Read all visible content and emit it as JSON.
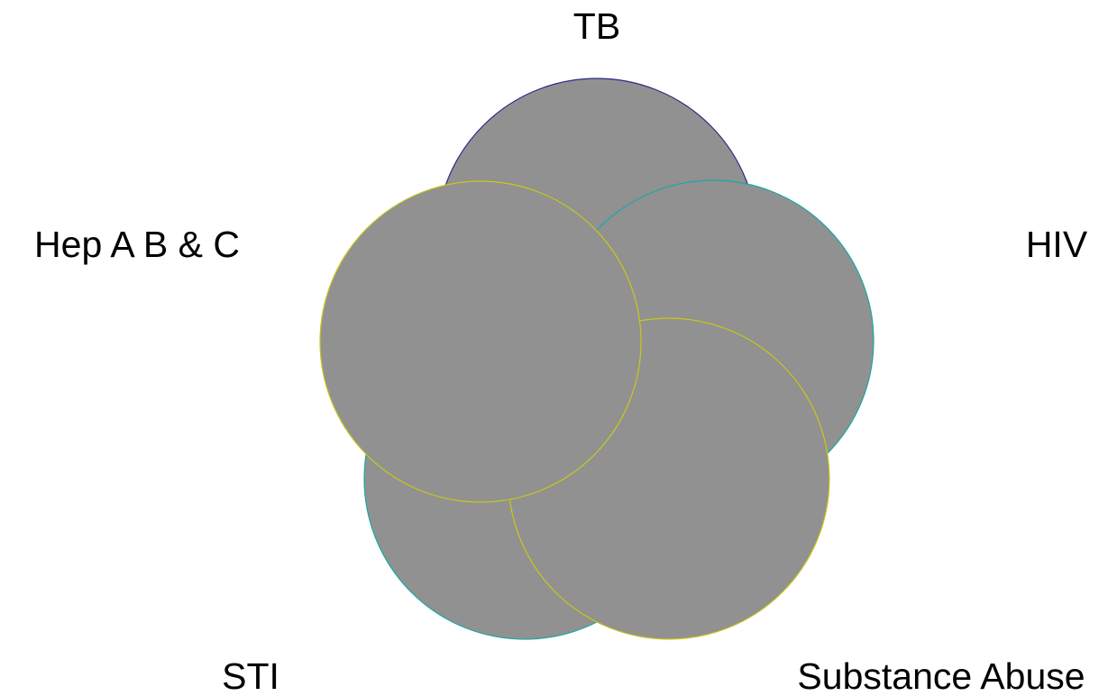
{
  "diagram": {
    "type": "venn",
    "fill_color": "#919191",
    "background": "#ffffff",
    "sets": [
      {
        "id": "tb",
        "label": "TB",
        "stroke": "#2a2a8a"
      },
      {
        "id": "hiv",
        "label": "HIV",
        "stroke": "#1aa7a7"
      },
      {
        "id": "substance-abuse",
        "label": "Substance Abuse",
        "stroke": "#c8c818"
      },
      {
        "id": "sti",
        "label": "STI",
        "stroke": "#1aa7a7"
      },
      {
        "id": "hep",
        "label": "Hep A B & C",
        "stroke": "#c8c818"
      }
    ]
  }
}
